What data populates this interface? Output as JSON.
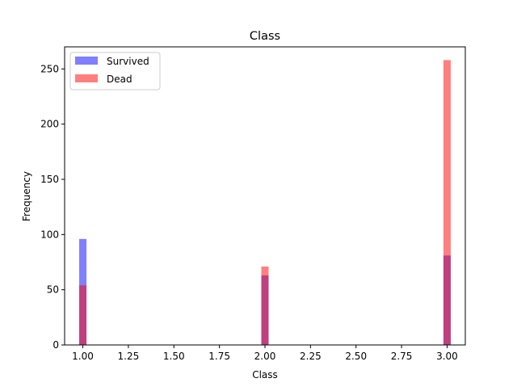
{
  "chart_data": {
    "type": "bar",
    "title": "Class",
    "xlabel": "Class",
    "ylabel": "Frequency",
    "xlim": [
      0.9,
      3.1
    ],
    "ylim": [
      0,
      270
    ],
    "x_ticks": [
      "1.00",
      "1.25",
      "1.50",
      "1.75",
      "2.00",
      "2.25",
      "2.50",
      "2.75",
      "3.00"
    ],
    "y_ticks": [
      "0",
      "50",
      "100",
      "150",
      "200",
      "250"
    ],
    "x": [
      1,
      2,
      3
    ],
    "bin_width": 0.04,
    "grid": false,
    "legend": "upper-left",
    "series": [
      {
        "name": "Survived",
        "values": [
          96,
          63,
          81
        ],
        "color": "#0000ff",
        "alpha": 0.5
      },
      {
        "name": "Dead",
        "values": [
          54,
          71,
          258
        ],
        "color": "#ff0000",
        "alpha": 0.5
      }
    ]
  }
}
